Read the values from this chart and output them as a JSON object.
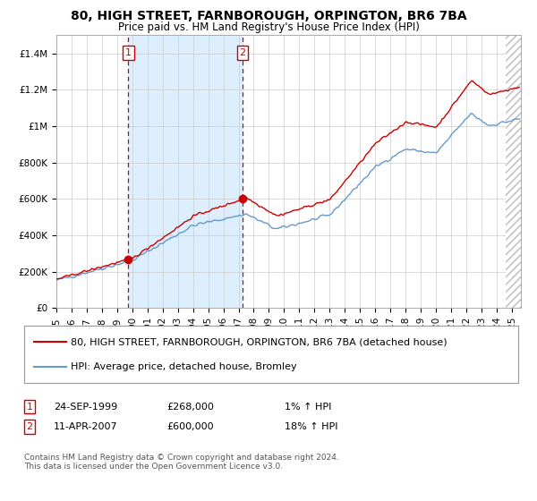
{
  "title": "80, HIGH STREET, FARNBOROUGH, ORPINGTON, BR6 7BA",
  "subtitle": "Price paid vs. HM Land Registry's House Price Index (HPI)",
  "legend_line1": "80, HIGH STREET, FARNBOROUGH, ORPINGTON, BR6 7BA (detached house)",
  "legend_line2": "HPI: Average price, detached house, Bromley",
  "annotation1_date": "24-SEP-1999",
  "annotation1_price": "£268,000",
  "annotation1_hpi": "1% ↑ HPI",
  "annotation2_date": "11-APR-2007",
  "annotation2_price": "£600,000",
  "annotation2_hpi": "18% ↑ HPI",
  "footer": "Contains HM Land Registry data © Crown copyright and database right 2024.\nThis data is licensed under the Open Government Licence v3.0.",
  "red_color": "#cc0000",
  "blue_color": "#6699cc",
  "bg_color": "#ffffff",
  "plot_bg_color": "#ffffff",
  "grid_color": "#cccccc",
  "shade_color": "#ddeeff",
  "annotation_box_color": "#cc0000",
  "dashed_line_color": "#cc0000",
  "ylim": [
    0,
    1500000
  ],
  "yticks": [
    0,
    200000,
    400000,
    600000,
    800000,
    1000000,
    1200000,
    1400000
  ],
  "ytick_labels": [
    "£0",
    "£200K",
    "£400K",
    "£600K",
    "£800K",
    "£1M",
    "£1.2M",
    "£1.4M"
  ],
  "sale1_year": 1999.73,
  "sale1_value": 268000,
  "sale2_year": 2007.27,
  "sale2_value": 600000,
  "title_fontsize": 10,
  "subtitle_fontsize": 8.5,
  "tick_fontsize": 7.5,
  "legend_fontsize": 8,
  "footer_fontsize": 6.5,
  "annot_fontsize": 8
}
